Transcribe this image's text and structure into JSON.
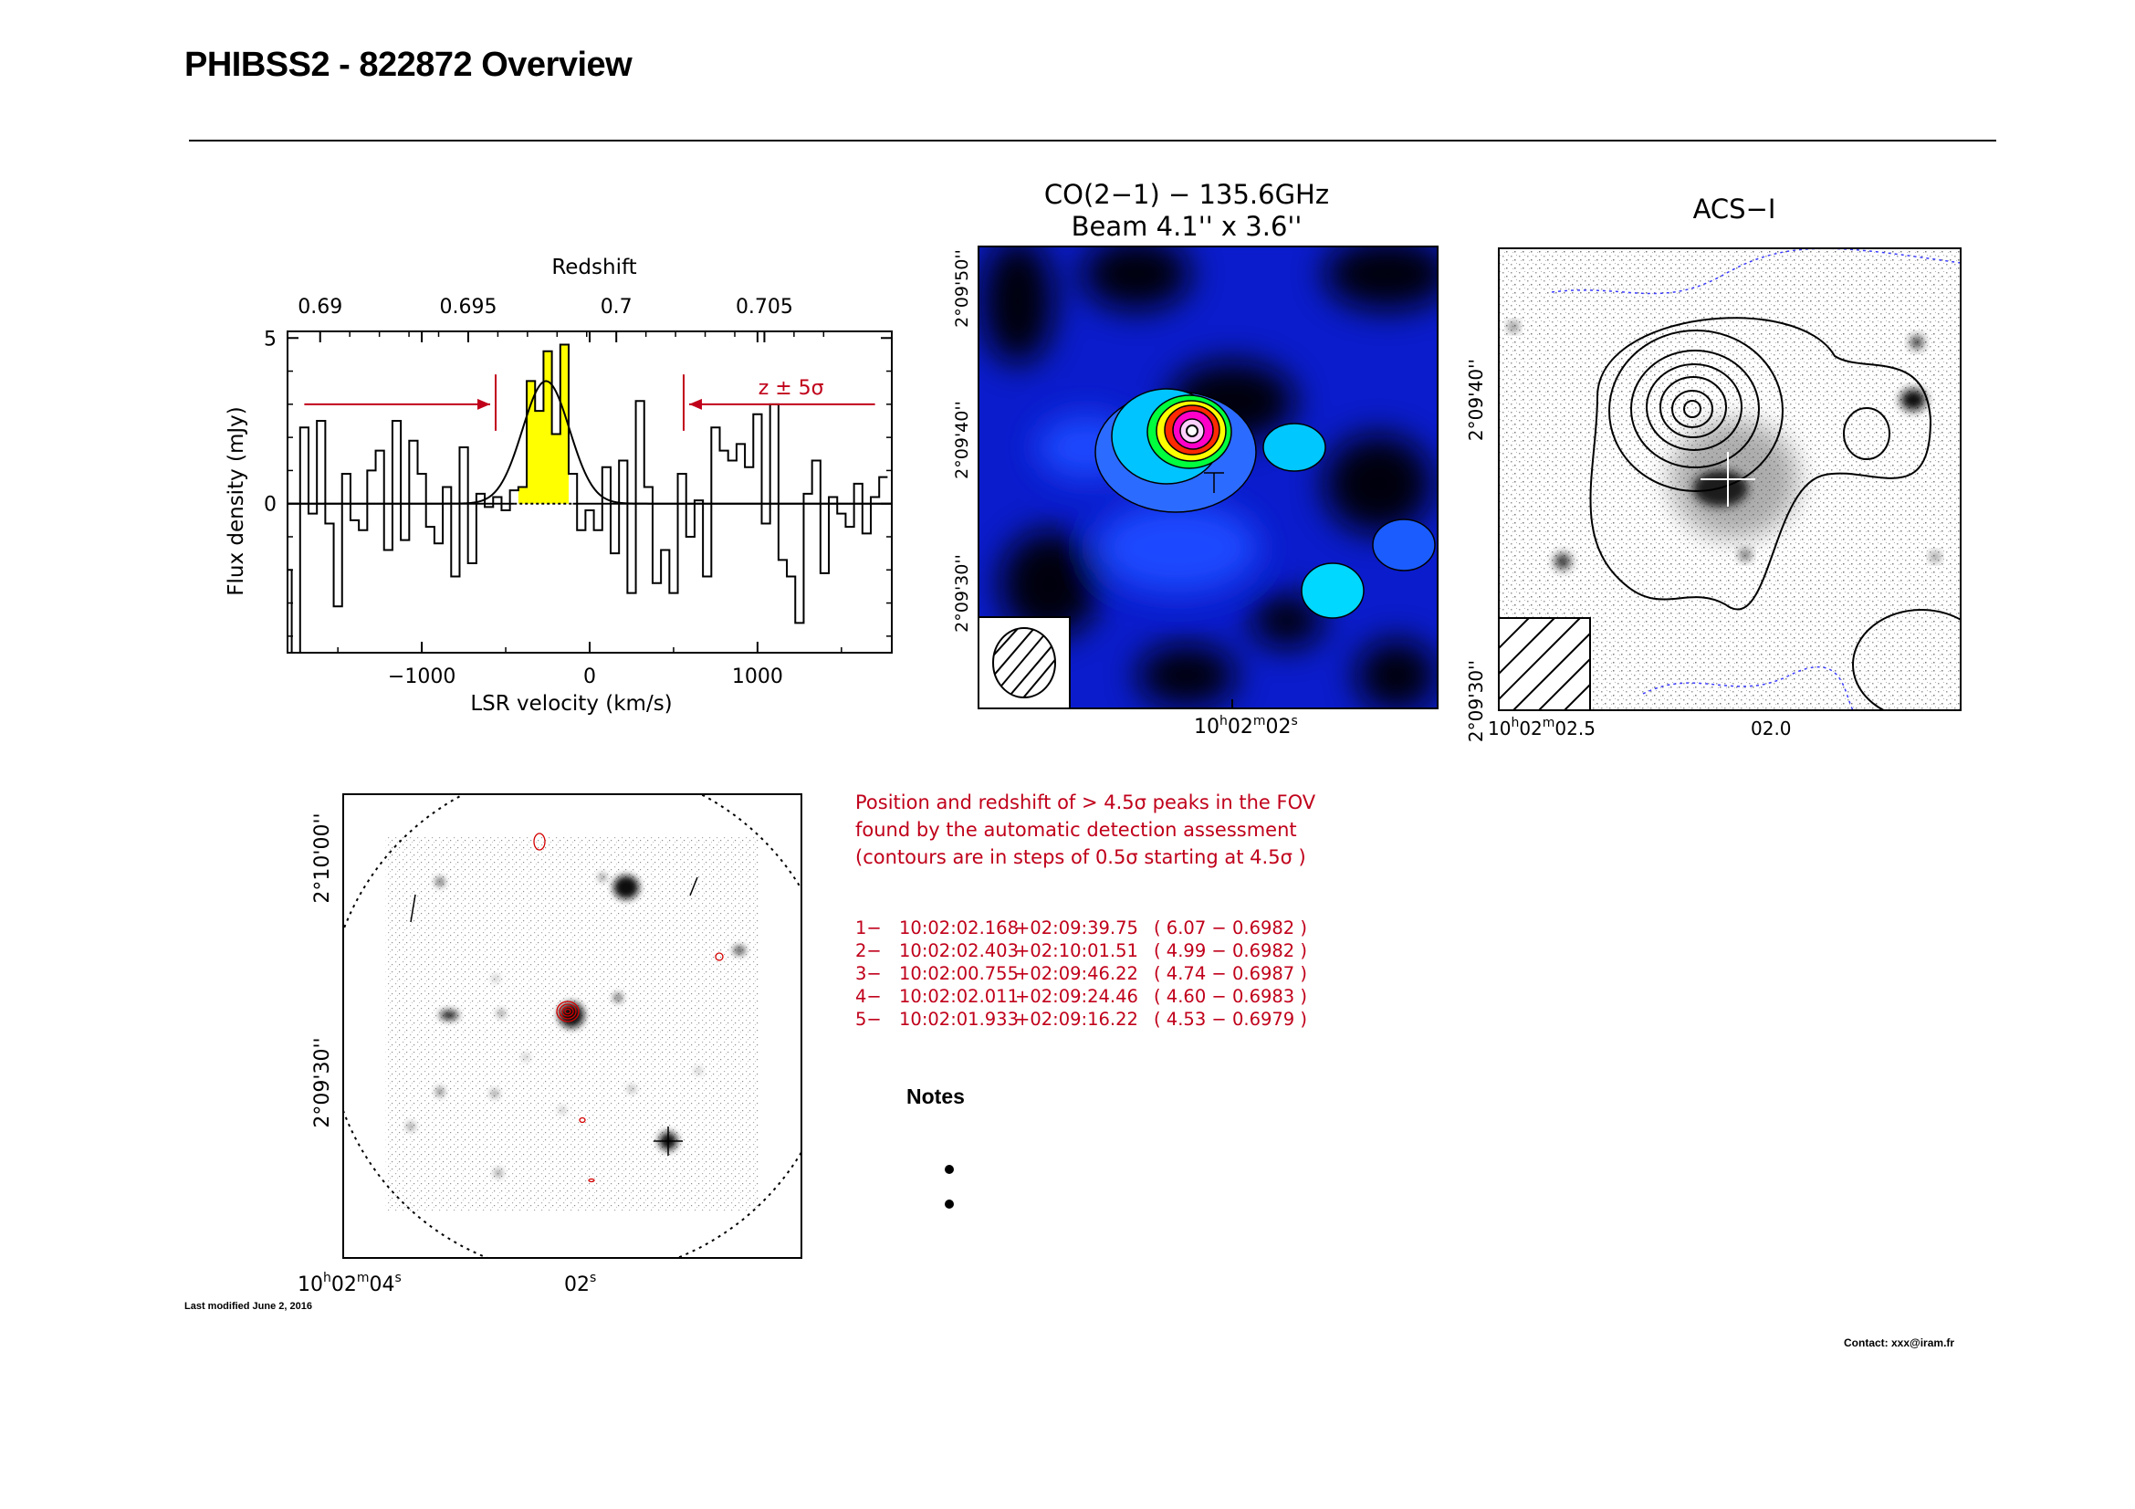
{
  "header": {
    "title": "PHIBSS2 - 822872 Overview",
    "last_modified": "Last modified June 2, 2016",
    "contact": "Contact: xxx@iram.fr"
  },
  "colors": {
    "annotation": "#c0001a",
    "line_fill": "#ffff00",
    "map_low": "#000000",
    "map_mid": "#1b3cff",
    "map_high": "#ff00ff"
  },
  "chart_data": [
    {
      "type": "line",
      "name": "spectrum",
      "title": "",
      "top_axis_label": "Redshift",
      "top_ticks": [
        "0.69",
        "0.695",
        "0.7",
        "0.705"
      ],
      "xlabel": "LSR velocity (km/s)",
      "ylabel": "Flux density (mJy)",
      "x_ticks": [
        "−1000",
        "0",
        "1000"
      ],
      "y_ticks": [
        "0",
        "5"
      ],
      "xlim": [
        -1800,
        1800
      ],
      "ylim": [
        -4.5,
        5.2
      ],
      "annotation": "z ± 5σ",
      "bin_width_kms": 50,
      "channels": [
        -1800,
        -1750,
        -1700,
        -1650,
        -1600,
        -1550,
        -1500,
        -1450,
        -1400,
        -1350,
        -1300,
        -1250,
        -1200,
        -1150,
        -1100,
        -1050,
        -1000,
        -950,
        -900,
        -850,
        -800,
        -750,
        -700,
        -650,
        -600,
        -550,
        -500,
        -450,
        -400,
        -350,
        -300,
        -250,
        -200,
        -150,
        -100,
        -50,
        0,
        50,
        100,
        150,
        200,
        250,
        300,
        350,
        400,
        450,
        500,
        550,
        600,
        650,
        700,
        750,
        800,
        850,
        900,
        950,
        1000,
        1050,
        1100,
        1150,
        1200,
        1250,
        1300,
        1350,
        1400,
        1450,
        1500,
        1550,
        1600,
        1650,
        1700,
        1750
      ],
      "flux": [
        -2,
        -4.5,
        2.3,
        -0.3,
        2.5,
        -0.6,
        -3.1,
        0.9,
        -0.5,
        -0.8,
        1,
        1.6,
        -1.4,
        2.5,
        -1.1,
        1.9,
        0.9,
        -0.7,
        -1.2,
        0.5,
        -2.2,
        1.7,
        -1.8,
        0.3,
        -0.1,
        0.2,
        -0.2,
        0.4,
        0.5,
        3.7,
        2.8,
        4.6,
        2.1,
        4.8,
        0.9,
        -0.8,
        -0.2,
        -0.8,
        1.1,
        -1.5,
        1.3,
        -2.7,
        3.1,
        0.5,
        -2.4,
        -1.4,
        -2.7,
        0.9,
        -1,
        0.1,
        -2.2,
        2.3,
        1.6,
        1.3,
        1.8,
        1.1,
        2.7,
        -0.6,
        3,
        -1.7,
        -2.2,
        -3.6,
        0.3,
        1.3,
        -2.1,
        0.2,
        -0.3,
        -0.7,
        0.6,
        -0.9,
        0.2,
        0.8
      ],
      "gaussian_fit": {
        "center_kms": -260,
        "peak_mJy": 3.7,
        "sigma_kms": 140
      },
      "window_kms": [
        -560,
        560
      ],
      "fill_range_kms": [
        -450,
        -100
      ]
    },
    {
      "type": "heatmap",
      "name": "co-map",
      "title": [
        "CO(2−1) − 135.6GHz",
        "Beam 4.1'' x 3.6''"
      ],
      "x_ticks": [
        "10h02m02s"
      ],
      "y_ticks": [
        "2°09'50''",
        "2°09'40''",
        "2°09'30''"
      ],
      "colormap": [
        "#000000",
        "#0a0aa8",
        "#1b3cff",
        "#00e5ff",
        "#00ff00",
        "#ffff00",
        "#ff0000",
        "#ff00ff",
        "#ffffff"
      ],
      "peak_sigma": 6.07
    },
    {
      "type": "heatmap",
      "name": "acs-image",
      "title": "ACS−I",
      "x_ticks": [
        "10h02m02.5",
        "02.0"
      ],
      "y_ticks": [
        "2°09'40''",
        "2°09'30''"
      ]
    },
    {
      "type": "heatmap",
      "name": "fov-image",
      "title": "",
      "x_ticks": [
        "10h02m04s",
        "02s"
      ],
      "y_ticks": [
        "2°10'00''",
        "2°09'30''"
      ]
    }
  ],
  "peaks": {
    "header_lines": [
      "Position and redshift of > 4.5σ peaks in the FOV",
      "found by the automatic detection assessment",
      "(contours are in steps of 0.5σ starting at 4.5σ )"
    ],
    "rows": [
      {
        "id": "1−",
        "ra": "10:02:02.168",
        "dec": "+02:09:39.75",
        "snr": "6.07",
        "z": "0.6982"
      },
      {
        "id": "2−",
        "ra": "10:02:02.403",
        "dec": "+02:10:01.51",
        "snr": "4.99",
        "z": "0.6982"
      },
      {
        "id": "3−",
        "ra": "10:02:00.755",
        "dec": "+02:09:46.22",
        "snr": "4.74",
        "z": "0.6987"
      },
      {
        "id": "4−",
        "ra": "10:02:02.011",
        "dec": "+02:09:24.46",
        "snr": "4.60",
        "z": "0.6983"
      },
      {
        "id": "5−",
        "ra": "10:02:01.933",
        "dec": "+02:09:16.22",
        "snr": "4.53",
        "z": "0.6979"
      }
    ]
  },
  "notes": {
    "title": "Notes",
    "items": [
      "",
      ""
    ]
  }
}
